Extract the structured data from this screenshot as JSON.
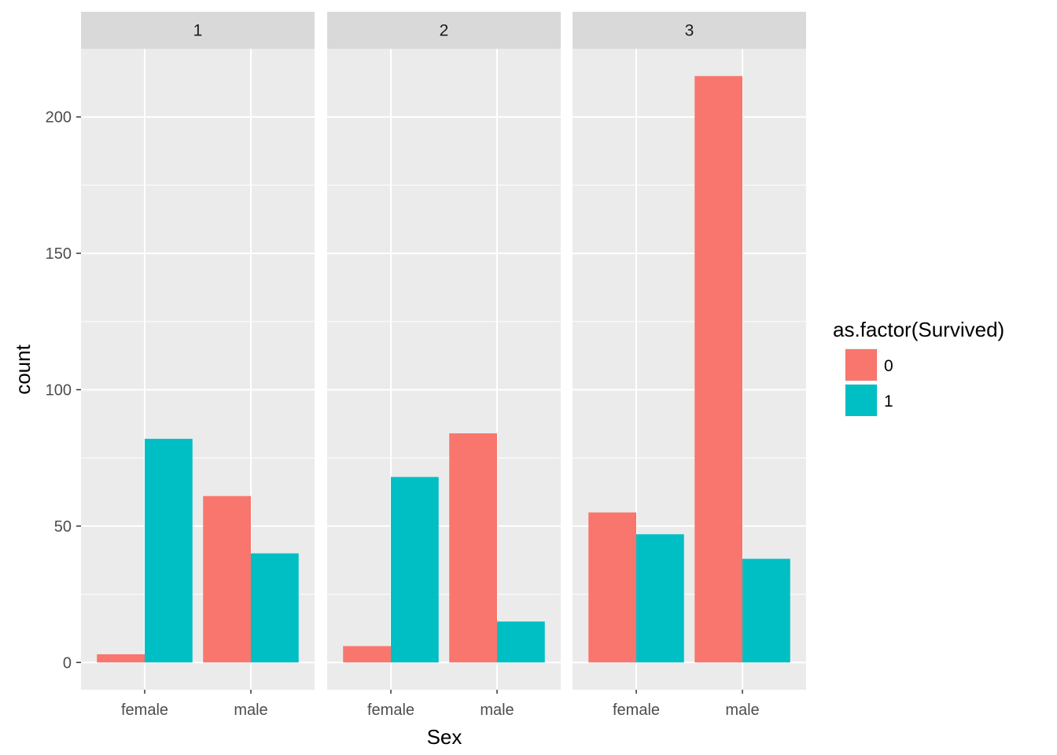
{
  "chart_data": {
    "type": "bar",
    "facet_by": "Pclass",
    "facets": [
      {
        "label": "1",
        "categories": [
          "female",
          "male"
        ],
        "series": [
          {
            "name": "0",
            "values": [
              3,
              61
            ]
          },
          {
            "name": "1",
            "values": [
              82,
              40
            ]
          }
        ]
      },
      {
        "label": "2",
        "categories": [
          "female",
          "male"
        ],
        "series": [
          {
            "name": "0",
            "values": [
              6,
              84
            ]
          },
          {
            "name": "1",
            "values": [
              68,
              15
            ]
          }
        ]
      },
      {
        "label": "3",
        "categories": [
          "female",
          "male"
        ],
        "series": [
          {
            "name": "0",
            "values": [
              55,
              215
            ]
          },
          {
            "name": "1",
            "values": [
              47,
              38
            ]
          }
        ]
      }
    ],
    "xlabel": "Sex",
    "ylabel": "count",
    "ylim": [
      -10,
      225
    ],
    "yticks": [
      0,
      50,
      100,
      150,
      200
    ],
    "ytick_labels": [
      "0",
      "50",
      "100",
      "150",
      "200"
    ],
    "grid": true,
    "legend": {
      "title": "as.factor(Survived)",
      "position": "right",
      "entries": [
        "0",
        "1"
      ]
    },
    "colors": {
      "0": "#F8766D",
      "1": "#00BFC4",
      "panel_bg": "#EBEBEB",
      "strip_bg": "#D9D9D9",
      "grid": "#FFFFFF"
    }
  }
}
